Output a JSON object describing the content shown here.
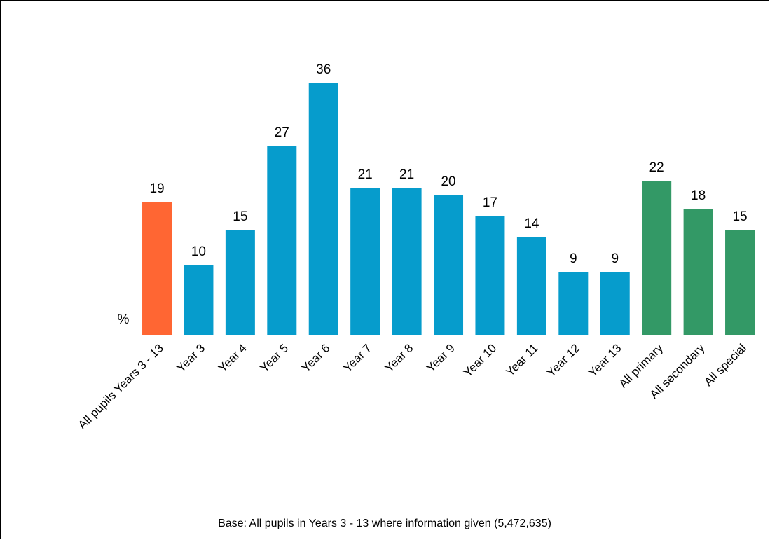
{
  "chart_data": {
    "type": "bar",
    "y_label": "%",
    "footnote": "Base: All pupils in Years 3 - 13 where information given (5,472,635)",
    "categories": [
      "All pupils Years 3 - 13",
      "Year 3",
      "Year 4",
      "Year 5",
      "Year 6",
      "Year 7",
      "Year 8",
      "Year 9",
      "Year 10",
      "Year 11",
      "Year 12",
      "Year 13",
      "All primary",
      "All secondary",
      "All special"
    ],
    "values": [
      19,
      10,
      15,
      27,
      36,
      21,
      21,
      20,
      17,
      14,
      9,
      9,
      22,
      18,
      15
    ],
    "colors": [
      "#ff6633",
      "#069ccc",
      "#069ccc",
      "#069ccc",
      "#069ccc",
      "#069ccc",
      "#069ccc",
      "#069ccc",
      "#069ccc",
      "#069ccc",
      "#069ccc",
      "#069ccc",
      "#339966",
      "#339966",
      "#339966"
    ],
    "ylim": [
      0,
      40
    ]
  }
}
